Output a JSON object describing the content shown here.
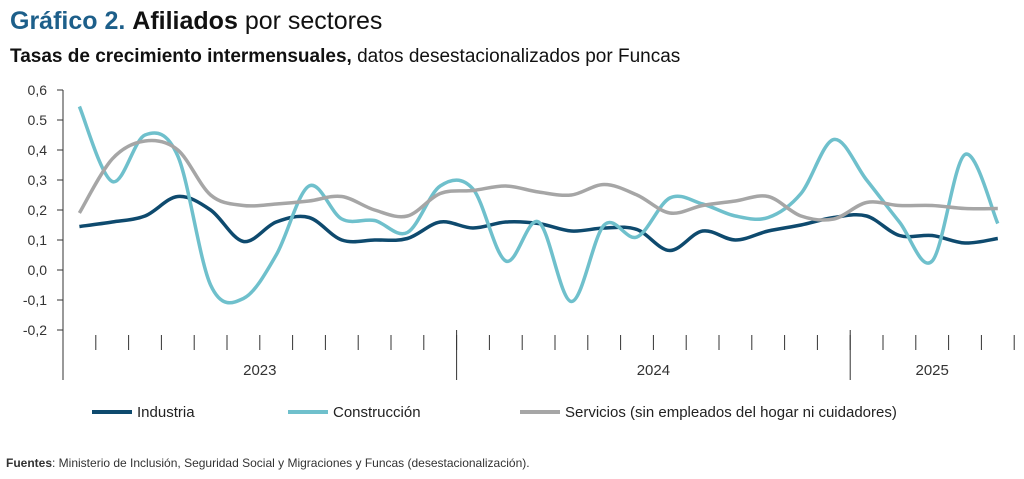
{
  "chart_data": {
    "type": "line",
    "title": [
      "Gráfico 2.",
      "Afiliados",
      "por sectores"
    ],
    "subtitle": [
      "Tasas de crecimiento intermensuales,",
      "datos desestacionalizados por Funcas"
    ],
    "source": [
      "Fuentes",
      ": Ministerio de Inclusión, Seguridad Social y Migraciones y Funcas (desestacionalización)."
    ],
    "categories": [
      null,
      null,
      null,
      null,
      null,
      null,
      null,
      null,
      null,
      null,
      null,
      null,
      null,
      null,
      null,
      null,
      null,
      null,
      null,
      null,
      null,
      null,
      null,
      null,
      null,
      null,
      null,
      null,
      null
    ],
    "groups": [
      {
        "label": "2023",
        "count": 12
      },
      {
        "label": "2024",
        "count": 12
      },
      {
        "label": "2025",
        "count": 5
      }
    ],
    "series": [
      {
        "name": "Industria",
        "color": "#0e4a6e",
        "values": [
          0.145,
          0.16,
          0.18,
          0.245,
          0.2,
          0.095,
          0.16,
          0.175,
          0.1,
          0.1,
          0.105,
          0.16,
          0.14,
          0.16,
          0.155,
          0.13,
          0.14,
          0.135,
          0.065,
          0.13,
          0.1,
          0.13,
          0.15,
          0.175,
          0.18,
          0.115,
          0.115,
          0.09,
          0.105
        ]
      },
      {
        "name": "Construcción",
        "color": "#6fc0cc",
        "values": [
          0.545,
          0.295,
          0.45,
          0.38,
          -0.05,
          -0.095,
          0.05,
          0.28,
          0.17,
          0.165,
          0.125,
          0.28,
          0.27,
          0.03,
          0.16,
          -0.105,
          0.15,
          0.11,
          0.24,
          0.22,
          0.18,
          0.175,
          0.255,
          0.435,
          0.3,
          0.16,
          0.03,
          0.385,
          0.155
        ]
      },
      {
        "name": "Servicios (sin empleados del hogar ni cuidadores)",
        "color": "#a6a6a6",
        "values": [
          0.19,
          0.37,
          0.43,
          0.4,
          0.25,
          0.215,
          0.22,
          0.23,
          0.245,
          0.2,
          0.18,
          0.255,
          0.265,
          0.28,
          0.26,
          0.25,
          0.285,
          0.25,
          0.19,
          0.215,
          0.23,
          0.245,
          0.18,
          0.17,
          0.225,
          0.215,
          0.215,
          0.205,
          0.205
        ]
      }
    ],
    "ylim": [
      -0.2,
      0.6
    ],
    "yticks": [
      {
        "value": 0.6,
        "label": "0,6"
      },
      {
        "value": 0.5,
        "label": "0.5"
      },
      {
        "value": 0.4,
        "label": "0,4"
      },
      {
        "value": 0.3,
        "label": "0,3"
      },
      {
        "value": 0.2,
        "label": "0,2"
      },
      {
        "value": 0.1,
        "label": "0,1"
      },
      {
        "value": 0,
        "label": "0,0"
      },
      {
        "value": -0.1,
        "label": "-0,1"
      },
      {
        "value": -0.2,
        "label": "-0,2"
      }
    ],
    "grid": false
  }
}
